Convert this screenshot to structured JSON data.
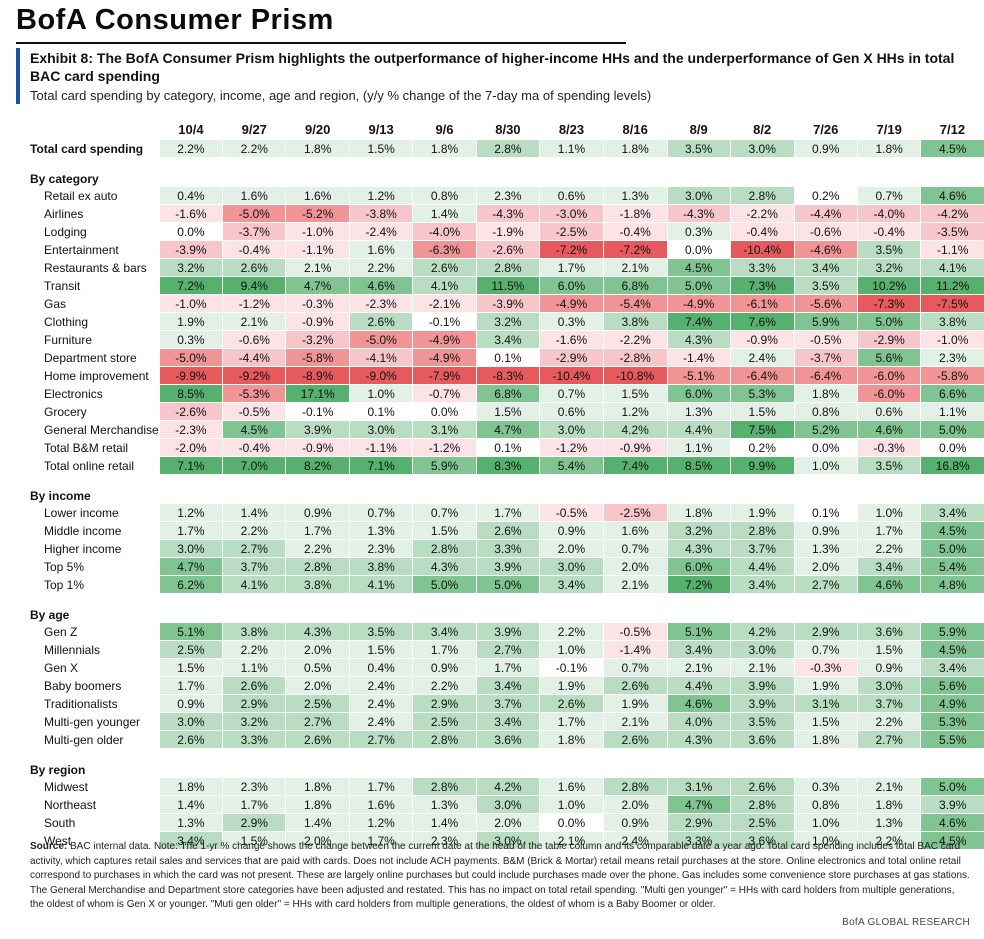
{
  "brand": "BofA Consumer Prism",
  "exhibit_title": "Exhibit 8: The BofA Consumer Prism highlights the outperformance of higher-income HHs and the underperformance of Gen X HHs in total BAC card spending",
  "subtitle": "Total card spending by category, income, age and region, (y/y % change of the 7-day ma of spending levels)",
  "source_label": "Source:",
  "source_text": "BAC internal data. Note: The 1-yr % change shows the change between the current date at the head of the table column and its comparable date a year ago. Total card spending includes total BAC card activity, which captures retail sales and services that are paid with cards. Does not include ACH payments. B&M (Brick & Mortar) retail means retail purchases at the store. Online electronics and total online retail correspond to purchases in which the card was not present. These are largely online purchases but could include purchases made over the phone. Gas includes some convenience store purchases at gas stations. The General Merchandise and Department store categories have been adjusted and restated. This has no impact on total retail spending. \"Multi gen younger\" = HHs with card holders from multiple generations, the oldest of whom is Gen X or younger. \"Muti gen older\" = HHs with card holders from multiple generations, the oldest of whom is a Baby Boomer or older.",
  "footer": "BofA GLOBAL RESEARCH",
  "chart_data": {
    "type": "heatmap",
    "unit": "%",
    "columns": [
      "10/4",
      "9/27",
      "9/20",
      "9/13",
      "9/6",
      "8/30",
      "8/23",
      "8/16",
      "8/9",
      "8/2",
      "7/26",
      "7/19",
      "7/12"
    ],
    "sections": [
      {
        "title": "",
        "total": true,
        "rows": [
          {
            "label": "Total card spending",
            "values": [
              2.2,
              2.2,
              1.8,
              1.5,
              1.8,
              2.8,
              1.1,
              1.8,
              3.5,
              3.0,
              0.9,
              1.8,
              4.5
            ]
          }
        ]
      },
      {
        "title": "By category",
        "rows": [
          {
            "label": "Retail ex auto",
            "values": [
              0.4,
              1.6,
              1.6,
              1.2,
              0.8,
              2.3,
              0.6,
              1.3,
              3.0,
              2.8,
              0.2,
              0.7,
              4.6
            ]
          },
          {
            "label": "Airlines",
            "values": [
              -1.6,
              -5.0,
              -5.2,
              -3.8,
              1.4,
              -4.3,
              -3.0,
              -1.8,
              -4.3,
              -2.2,
              -4.4,
              -4.0,
              -4.2
            ]
          },
          {
            "label": "Lodging",
            "values": [
              0.0,
              -3.7,
              -1.0,
              -2.4,
              -4.0,
              -1.9,
              -2.5,
              -0.4,
              0.3,
              -0.4,
              -0.6,
              -0.4,
              -3.5
            ]
          },
          {
            "label": "Entertainment",
            "values": [
              -3.9,
              -0.4,
              -1.1,
              1.6,
              -6.3,
              -2.6,
              -7.2,
              -7.2,
              0.0,
              -10.4,
              -4.6,
              3.5,
              -1.1
            ]
          },
          {
            "label": "Restaurants & bars",
            "values": [
              3.2,
              2.6,
              2.1,
              2.2,
              2.6,
              2.8,
              1.7,
              2.1,
              4.5,
              3.3,
              3.4,
              3.2,
              4.1
            ]
          },
          {
            "label": "Transit",
            "values": [
              7.2,
              9.4,
              4.7,
              4.6,
              4.1,
              11.5,
              6.0,
              6.8,
              5.0,
              7.3,
              3.5,
              10.2,
              11.2
            ]
          },
          {
            "label": "Gas",
            "values": [
              -1.0,
              -1.2,
              -0.3,
              -2.3,
              -2.1,
              -3.9,
              -4.9,
              -5.4,
              -4.9,
              -6.1,
              -5.6,
              -7.3,
              -7.5
            ]
          },
          {
            "label": "Clothing",
            "values": [
              1.9,
              2.1,
              -0.9,
              2.6,
              -0.1,
              3.2,
              0.3,
              3.8,
              7.4,
              7.6,
              5.9,
              5.0,
              3.8
            ]
          },
          {
            "label": "Furniture",
            "values": [
              0.3,
              -0.6,
              -3.2,
              -5.0,
              -4.9,
              3.4,
              -1.6,
              -2.2,
              4.3,
              -0.9,
              -0.5,
              -2.9,
              -1.0
            ]
          },
          {
            "label": "Department store",
            "values": [
              -5.0,
              -4.4,
              -5.8,
              -4.1,
              -4.9,
              0.1,
              -2.9,
              -2.8,
              -1.4,
              2.4,
              -3.7,
              5.6,
              2.3
            ]
          },
          {
            "label": "Home improvement",
            "values": [
              -9.9,
              -9.2,
              -8.9,
              -9.0,
              -7.9,
              -8.3,
              -10.4,
              -10.8,
              -5.1,
              -6.4,
              -6.4,
              -6.0,
              -5.8
            ]
          },
          {
            "label": "Electronics",
            "values": [
              8.5,
              -5.3,
              17.1,
              1.0,
              -0.7,
              6.8,
              0.7,
              1.5,
              6.0,
              5.3,
              1.8,
              -6.0,
              6.6
            ]
          },
          {
            "label": "Grocery",
            "values": [
              -2.6,
              -0.5,
              -0.1,
              0.1,
              0.0,
              1.5,
              0.6,
              1.2,
              1.3,
              1.5,
              0.8,
              0.6,
              1.1
            ]
          },
          {
            "label": "General Merchandise",
            "values": [
              -2.3,
              4.5,
              3.9,
              3.0,
              3.1,
              4.7,
              3.0,
              4.2,
              4.4,
              7.5,
              5.2,
              4.6,
              5.0
            ]
          },
          {
            "label": "Total B&M retail",
            "values": [
              -2.0,
              -0.4,
              -0.9,
              -1.1,
              -1.2,
              0.1,
              -1.2,
              -0.9,
              1.1,
              0.2,
              0.0,
              -0.3,
              0.0
            ]
          },
          {
            "label": "Total online retail",
            "values": [
              7.1,
              7.0,
              8.2,
              7.1,
              5.9,
              8.3,
              5.4,
              7.4,
              8.5,
              9.9,
              1.0,
              3.5,
              16.8
            ]
          }
        ]
      },
      {
        "title": "By income",
        "rows": [
          {
            "label": "Lower income",
            "values": [
              1.2,
              1.4,
              0.9,
              0.7,
              0.7,
              1.7,
              -0.5,
              -2.5,
              1.8,
              1.9,
              0.1,
              1.0,
              3.4
            ]
          },
          {
            "label": "Middle income",
            "values": [
              1.7,
              2.2,
              1.7,
              1.3,
              1.5,
              2.6,
              0.9,
              1.6,
              3.2,
              2.8,
              0.9,
              1.7,
              4.5
            ]
          },
          {
            "label": "Higher income",
            "values": [
              3.0,
              2.7,
              2.2,
              2.3,
              2.8,
              3.3,
              2.0,
              0.7,
              4.3,
              3.7,
              1.3,
              2.2,
              5.0
            ]
          },
          {
            "label": "Top 5%",
            "values": [
              4.7,
              3.7,
              2.8,
              3.8,
              4.3,
              3.9,
              3.0,
              2.0,
              6.0,
              4.4,
              2.0,
              3.4,
              5.4
            ]
          },
          {
            "label": "Top 1%",
            "values": [
              6.2,
              4.1,
              3.8,
              4.1,
              5.0,
              5.0,
              3.4,
              2.1,
              7.2,
              3.4,
              2.7,
              4.6,
              4.8
            ]
          }
        ]
      },
      {
        "title": "By age",
        "rows": [
          {
            "label": "Gen Z",
            "values": [
              5.1,
              3.8,
              4.3,
              3.5,
              3.4,
              3.9,
              2.2,
              -0.5,
              5.1,
              4.2,
              2.9,
              3.6,
              5.9
            ]
          },
          {
            "label": "Millennials",
            "values": [
              2.5,
              2.2,
              2.0,
              1.5,
              1.7,
              2.7,
              1.0,
              -1.4,
              3.4,
              3.0,
              0.7,
              1.5,
              4.5
            ]
          },
          {
            "label": "Gen X",
            "values": [
              1.5,
              1.1,
              0.5,
              0.4,
              0.9,
              1.7,
              -0.1,
              0.7,
              2.1,
              2.1,
              -0.3,
              0.9,
              3.4
            ]
          },
          {
            "label": "Baby boomers",
            "values": [
              1.7,
              2.6,
              2.0,
              2.4,
              2.2,
              3.4,
              1.9,
              2.6,
              4.4,
              3.9,
              1.9,
              3.0,
              5.6
            ]
          },
          {
            "label": "Traditionalists",
            "values": [
              0.9,
              2.9,
              2.5,
              2.4,
              2.9,
              3.7,
              2.6,
              1.9,
              4.6,
              3.9,
              3.1,
              3.7,
              4.9
            ]
          },
          {
            "label": "Multi-gen younger",
            "values": [
              3.0,
              3.2,
              2.7,
              2.4,
              2.5,
              3.4,
              1.7,
              2.1,
              4.0,
              3.5,
              1.5,
              2.2,
              5.3
            ]
          },
          {
            "label": "Multi-gen older",
            "values": [
              2.6,
              3.3,
              2.6,
              2.7,
              2.8,
              3.6,
              1.8,
              2.6,
              4.3,
              3.6,
              1.8,
              2.7,
              5.5
            ]
          }
        ]
      },
      {
        "title": "By region",
        "rows": [
          {
            "label": "Midwest",
            "values": [
              1.8,
              2.3,
              1.8,
              1.7,
              2.8,
              4.2,
              1.6,
              2.8,
              3.1,
              2.6,
              0.3,
              2.1,
              5.0
            ]
          },
          {
            "label": "Northeast",
            "values": [
              1.4,
              1.7,
              1.8,
              1.6,
              1.3,
              3.0,
              1.0,
              2.0,
              4.7,
              2.8,
              0.8,
              1.8,
              3.9
            ]
          },
          {
            "label": "South",
            "values": [
              1.3,
              2.9,
              1.4,
              1.2,
              1.4,
              2.0,
              0.0,
              0.9,
              2.9,
              2.5,
              1.0,
              1.3,
              4.6
            ]
          },
          {
            "label": "West",
            "values": [
              3.4,
              1.5,
              2.0,
              1.7,
              2.3,
              3.0,
              2.1,
              2.4,
              3.3,
              3.6,
              1.0,
              2.2,
              4.5
            ]
          }
        ]
      }
    ]
  }
}
